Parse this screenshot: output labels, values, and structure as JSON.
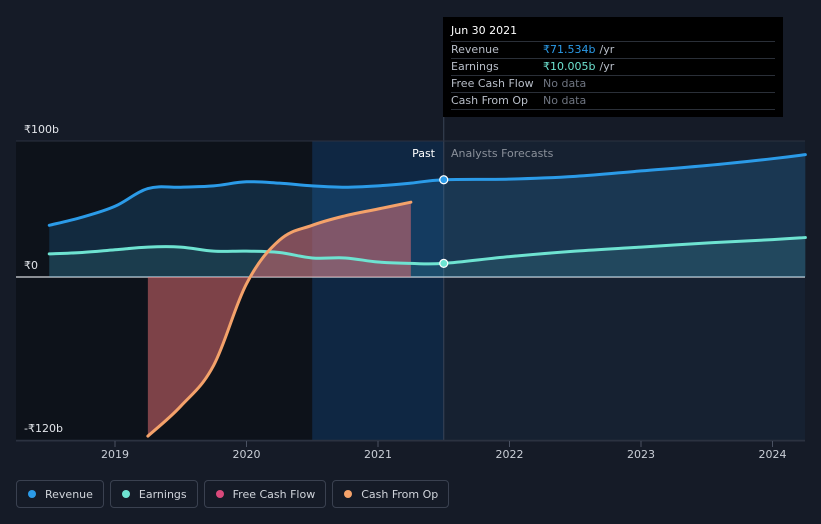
{
  "tooltip": {
    "date": "Jun 30 2021",
    "rows": [
      {
        "label": "Revenue",
        "value": "₹71.534b",
        "unit": "/yr"
      },
      {
        "label": "Earnings",
        "value": "₹10.005b",
        "unit": "/yr"
      },
      {
        "label": "Free Cash Flow",
        "value": "No data",
        "unit": ""
      },
      {
        "label": "Cash From Op",
        "value": "No data",
        "unit": ""
      }
    ]
  },
  "labels": {
    "past": "Past",
    "forecast": "Analysts Forecasts"
  },
  "legend": [
    {
      "label": "Revenue",
      "color": "#2b9be8"
    },
    {
      "label": "Earnings",
      "color": "#6ee3d1"
    },
    {
      "label": "Free Cash Flow",
      "color": "#d9497b"
    },
    {
      "label": "Cash From Op",
      "color": "#f4a26a"
    }
  ],
  "chart_data": {
    "type": "line",
    "y_tick_labels": [
      "₹100b",
      "₹0",
      "-₹120b"
    ],
    "y_ticks": [
      100,
      0,
      -120
    ],
    "ylim": [
      -120,
      100
    ],
    "x_tick_labels": [
      "2019",
      "2020",
      "2021",
      "2022",
      "2023",
      "2024"
    ],
    "x_ticks": [
      2019,
      2020,
      2021,
      2022,
      2023,
      2024
    ],
    "xlim": [
      2018.25,
      2024.25
    ],
    "past_end": 2021.5,
    "series": [
      {
        "name": "Revenue",
        "color": "#2b9be8",
        "x": [
          2018.5,
          2018.75,
          2019.0,
          2019.25,
          2019.5,
          2019.75,
          2020.0,
          2020.25,
          2020.5,
          2020.75,
          2021.0,
          2021.25,
          2021.5,
          2022.0,
          2022.5,
          2023.0,
          2023.5,
          2024.0,
          2024.25
        ],
        "y": [
          38,
          44,
          52,
          65,
          66,
          67,
          70,
          69,
          67,
          66,
          67,
          69,
          71.5,
          72,
          74,
          78,
          82,
          87,
          90
        ]
      },
      {
        "name": "Earnings",
        "color": "#6ee3d1",
        "x": [
          2018.5,
          2018.75,
          2019.0,
          2019.25,
          2019.5,
          2019.75,
          2020.0,
          2020.25,
          2020.5,
          2020.75,
          2021.0,
          2021.25,
          2021.5,
          2022.0,
          2022.5,
          2023.0,
          2023.5,
          2024.0,
          2024.25
        ],
        "y": [
          17,
          18,
          20,
          22,
          22,
          19,
          19,
          18,
          14,
          14,
          11,
          10,
          10,
          15,
          19,
          22,
          25,
          27.5,
          29
        ]
      },
      {
        "name": "Free Cash Flow",
        "color": "#d9497b",
        "x": [
          2019.25,
          2019.5,
          2019.75,
          2020.0,
          2020.25,
          2020.5,
          2020.75,
          2021.0,
          2021.25
        ],
        "y": [
          -117,
          -95,
          -65,
          -5,
          27,
          38,
          45,
          50,
          55
        ]
      },
      {
        "name": "Cash From Op",
        "color": "#f4a26a",
        "x": [
          2019.25,
          2019.5,
          2019.75,
          2020.0,
          2020.25,
          2020.5,
          2020.75,
          2021.0,
          2021.25
        ],
        "y": [
          -117,
          -95,
          -65,
          -5,
          27,
          38,
          45,
          50,
          55
        ]
      }
    ]
  }
}
